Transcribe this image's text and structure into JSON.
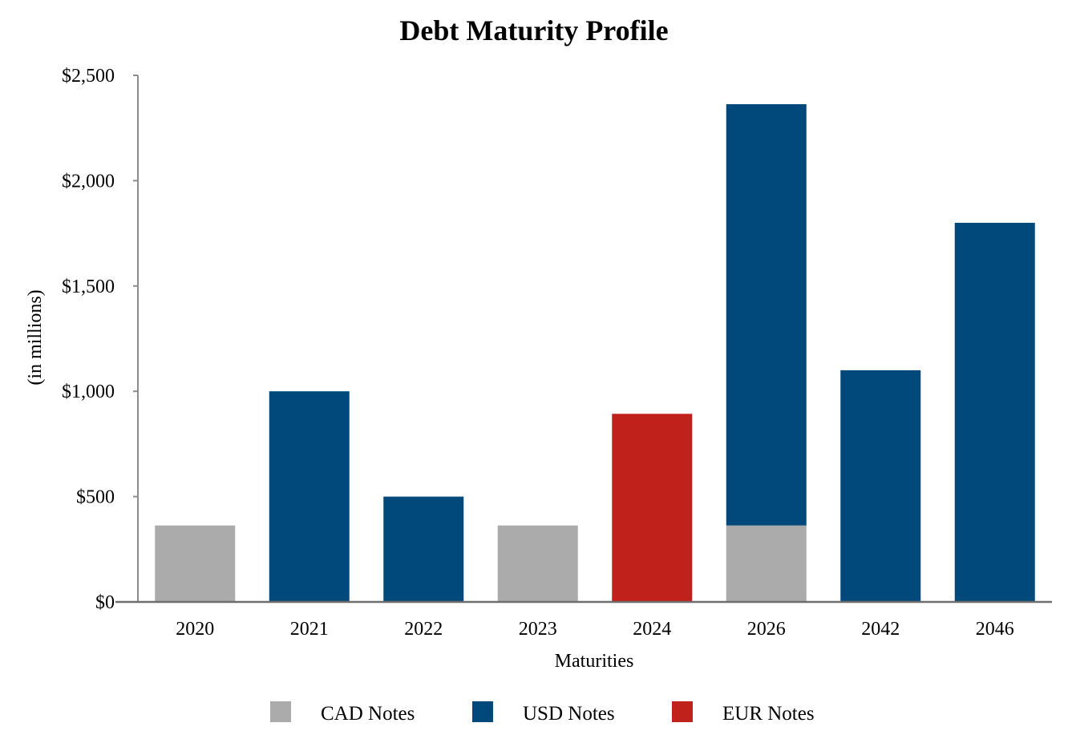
{
  "chart_data": {
    "type": "bar",
    "stacked": true,
    "title": "Debt Maturity Profile",
    "xlabel": "Maturities",
    "ylabel": "(in millions)",
    "categories": [
      "2020",
      "2021",
      "2022",
      "2023",
      "2024",
      "2026",
      "2042",
      "2046"
    ],
    "series": [
      {
        "name": "CAD Notes",
        "color": "#ababab",
        "values": [
          363,
          0,
          0,
          363,
          0,
          363,
          0,
          0
        ]
      },
      {
        "name": "USD Notes",
        "color": "#00497a",
        "values": [
          0,
          1000,
          500,
          0,
          0,
          2000,
          1100,
          1800
        ]
      },
      {
        "name": "EUR Notes",
        "color": "#c0211a",
        "values": [
          0,
          0,
          0,
          0,
          893,
          0,
          0,
          0
        ]
      }
    ],
    "ylim": [
      0,
      2500
    ],
    "yticks": [
      0,
      500,
      1000,
      1500,
      2000,
      2500
    ],
    "ytick_labels": [
      "$0",
      "$500",
      "$1,000",
      "$1,500",
      "$2,000",
      "$2,500"
    ],
    "grid": false,
    "legend_position": "bottom"
  }
}
